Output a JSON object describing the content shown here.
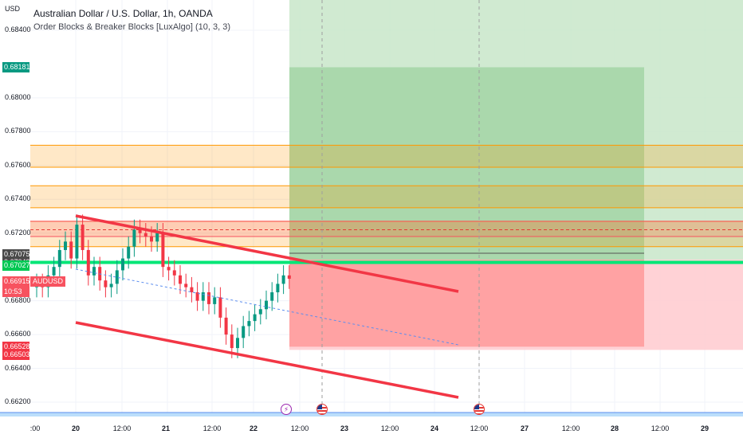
{
  "header": {
    "title": "Australian Dollar / U.S. Dollar, 1h, OANDA",
    "indicator": "Order Blocks & Breaker Blocks [LuxAlgo] (10, 3, 3)"
  },
  "currency": "USD",
  "price_axis": {
    "ticks": [
      "0.68400",
      "0.68000",
      "0.67800",
      "0.67600",
      "0.67400",
      "0.67200",
      "0.66800",
      "0.66600",
      "0.66400",
      "0.66200"
    ],
    "tick_values": [
      0.684,
      0.68,
      0.678,
      0.676,
      0.674,
      0.672,
      0.668,
      0.666,
      0.664,
      0.662
    ]
  },
  "price_tags": [
    {
      "label": "0.68181",
      "value": 0.68181,
      "color": "#089981"
    },
    {
      "label": "0.67075",
      "value": 0.67075,
      "color": "#4a4a4a"
    },
    {
      "label": "0.67043",
      "value": 0.67043,
      "color": "#4a4a4a"
    },
    {
      "label": "0.67027",
      "value": 0.67027,
      "color": "#00c853"
    },
    {
      "label": "0.66915",
      "value": 0.66915,
      "color": "#f7525f"
    },
    {
      "label": "10:53",
      "value": 0.66915,
      "color": "#f7525f",
      "sub": true
    },
    {
      "label": "0.66528",
      "value": 0.66528,
      "color": "#f23645"
    },
    {
      "label": "0.66503",
      "value": 0.66503,
      "color": "#f23645"
    }
  ],
  "symbol_tag": "AUDUSD",
  "time_axis": {
    "labels": [
      ":00",
      "20",
      "12:00",
      "21",
      "12:00",
      "22",
      "12:00",
      "23",
      "12:00",
      "24",
      "12:00",
      "27",
      "12:00",
      "28",
      "12:00",
      "29"
    ]
  },
  "events": [
    {
      "type": "flash-icon",
      "symbol": "⚡"
    },
    {
      "type": "flag-icon"
    },
    {
      "type": "flag-icon"
    }
  ],
  "chart_data": {
    "type": "candlestick",
    "symbol": "AUDUSD",
    "timeframe": "1h",
    "current_price": 0.66915,
    "candles_approx_close": [
      0.669,
      0.6688,
      0.6695,
      0.67,
      0.671,
      0.6715,
      0.6705,
      0.6725,
      0.671,
      0.6695,
      0.67,
      0.6692,
      0.6688,
      0.669,
      0.6698,
      0.6705,
      0.6712,
      0.6722,
      0.672,
      0.6718,
      0.6715,
      0.672,
      0.67,
      0.6698,
      0.6695,
      0.669,
      0.6688,
      0.6685,
      0.668,
      0.6685,
      0.6678,
      0.6682,
      0.667,
      0.666,
      0.6652,
      0.6658,
      0.6665,
      0.6668,
      0.6672,
      0.6675,
      0.668,
      0.6685,
      0.669,
      0.6695,
      0.6693
    ],
    "zones": [
      {
        "name": "supply-zone",
        "from": 0.6759,
        "to": 0.6772,
        "color": "#ff9800"
      },
      {
        "name": "supply-zone",
        "from": 0.6735,
        "to": 0.6748,
        "color": "#ff9800"
      },
      {
        "name": "supply-zone",
        "from": 0.6712,
        "to": 0.6727,
        "color": "#ff9800"
      },
      {
        "name": "resistance-zone",
        "from": 0.6718,
        "to": 0.6727,
        "color": "#f7525f"
      }
    ],
    "position": {
      "entry": 0.67043,
      "target": 0.68181,
      "stop": 0.66528
    },
    "channel": {
      "upper": [
        [
          0.673,
          0.669
        ]
      ],
      "lower": [
        [
          0.6665,
          0.6624
        ]
      ]
    },
    "horizontal_line": 0.67027
  }
}
